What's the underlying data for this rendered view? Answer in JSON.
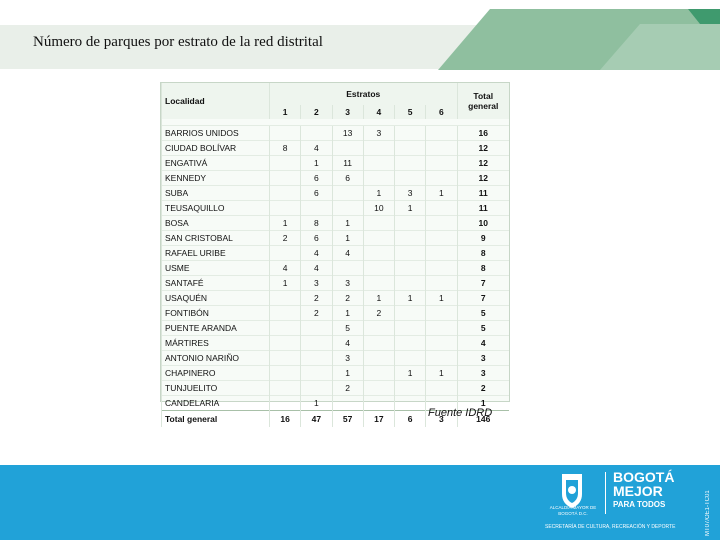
{
  "slide": {
    "title": "Número de parques por estrato de la red distrital",
    "source": "Fuente IDRD"
  },
  "table": {
    "col_locality": "Localidad",
    "group_strata": "Estratos",
    "col_total": "Total general",
    "strata": [
      "1",
      "2",
      "3",
      "4",
      "5",
      "6"
    ],
    "rows": [
      {
        "name": "BARRIOS UNIDOS",
        "s": [
          "",
          "",
          "13",
          "3",
          "",
          ""
        ],
        "total": "16"
      },
      {
        "name": "CIUDAD BOLÍVAR",
        "s": [
          "8",
          "4",
          "",
          "",
          "",
          ""
        ],
        "total": "12"
      },
      {
        "name": "ENGATIVÁ",
        "s": [
          "",
          "1",
          "11",
          "",
          "",
          ""
        ],
        "total": "12"
      },
      {
        "name": "KENNEDY",
        "s": [
          "",
          "6",
          "6",
          "",
          "",
          ""
        ],
        "total": "12"
      },
      {
        "name": "SUBA",
        "s": [
          "",
          "6",
          "",
          "1",
          "3",
          "1"
        ],
        "total": "11"
      },
      {
        "name": "TEUSAQUILLO",
        "s": [
          "",
          "",
          "",
          "10",
          "1",
          ""
        ],
        "total": "11"
      },
      {
        "name": "BOSA",
        "s": [
          "1",
          "8",
          "1",
          "",
          "",
          ""
        ],
        "total": "10"
      },
      {
        "name": "SAN CRISTOBAL",
        "s": [
          "2",
          "6",
          "1",
          "",
          "",
          ""
        ],
        "total": "9"
      },
      {
        "name": "RAFAEL URIBE",
        "s": [
          "",
          "4",
          "4",
          "",
          "",
          ""
        ],
        "total": "8"
      },
      {
        "name": "USME",
        "s": [
          "4",
          "4",
          "",
          "",
          "",
          ""
        ],
        "total": "8"
      },
      {
        "name": "SANTAFÉ",
        "s": [
          "1",
          "3",
          "3",
          "",
          "",
          ""
        ],
        "total": "7"
      },
      {
        "name": "USAQUÉN",
        "s": [
          "",
          "2",
          "2",
          "1",
          "1",
          "1"
        ],
        "total": "7"
      },
      {
        "name": "FONTIBÓN",
        "s": [
          "",
          "2",
          "1",
          "2",
          "",
          ""
        ],
        "total": "5"
      },
      {
        "name": "PUENTE ARANDA",
        "s": [
          "",
          "",
          "5",
          "",
          "",
          ""
        ],
        "total": "5"
      },
      {
        "name": "MÁRTIRES",
        "s": [
          "",
          "",
          "4",
          "",
          "",
          ""
        ],
        "total": "4"
      },
      {
        "name": "ANTONIO NARIÑO",
        "s": [
          "",
          "",
          "3",
          "",
          "",
          ""
        ],
        "total": "3"
      },
      {
        "name": "CHAPINERO",
        "s": [
          "",
          "",
          "1",
          "",
          "1",
          "1"
        ],
        "total": "3"
      },
      {
        "name": "TUNJUELITO",
        "s": [
          "",
          "",
          "2",
          "",
          "",
          ""
        ],
        "total": "2"
      },
      {
        "name": "CANDELARIA",
        "s": [
          "",
          "1",
          "",
          "",
          "",
          ""
        ],
        "total": "1"
      }
    ],
    "total_row": {
      "name": "Total general",
      "s": [
        "16",
        "47",
        "57",
        "17",
        "6",
        "3"
      ],
      "total": "146"
    }
  },
  "footer": {
    "seal_text": "ALCALDÍA MAYOR DE BOGOTÁ D.C.",
    "logo_line1": "BOGOTÁ",
    "logo_line2": "MEJOR",
    "logo_line3": "PARA TODOS",
    "secretaria": "SECRETARÍA DE CULTURA, RECREACIÓN Y DEPORTE",
    "side_code": "MT07/OE1-TC01"
  },
  "colors": {
    "footer_blue": "#21a2d8",
    "accent_green": "#8fbf9f",
    "dark_green": "#3f9a6e"
  }
}
